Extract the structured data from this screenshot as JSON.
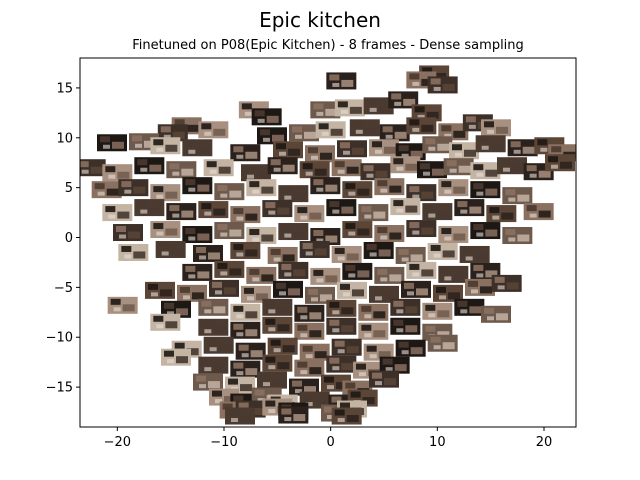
{
  "chart_data": {
    "type": "scatter",
    "title": "Epic kitchen",
    "subtitle": "Finetuned on P08(Epic Kitchen) - 8 frames - Dense sampling",
    "xlabel": "",
    "ylabel": "",
    "xlim": [
      -23.5,
      23
    ],
    "ylim": [
      -19,
      18
    ],
    "xticks": [
      -20,
      -10,
      0,
      10,
      20
    ],
    "yticks": [
      -15,
      -10,
      -5,
      0,
      5,
      10,
      15
    ],
    "xtick_labels": [
      "−20",
      "−10",
      "0",
      "10",
      "20"
    ],
    "ytick_labels": [
      "−15",
      "−10",
      "−5",
      "0",
      "5",
      "10",
      "15"
    ],
    "grid": false,
    "marker": "image-thumbnail",
    "points": [
      [
        1.0,
        15.7
      ],
      [
        9.7,
        16.4
      ],
      [
        8.5,
        15.8
      ],
      [
        10.5,
        15.3
      ],
      [
        -7.2,
        12.8
      ],
      [
        -6.0,
        12.1
      ],
      [
        -0.5,
        12.8
      ],
      [
        1.8,
        13.0
      ],
      [
        4.5,
        13.2
      ],
      [
        6.8,
        13.8
      ],
      [
        9.0,
        12.5
      ],
      [
        -13.5,
        11.2
      ],
      [
        -14.8,
        10.5
      ],
      [
        -11.0,
        10.8
      ],
      [
        -5.5,
        10.2
      ],
      [
        -2.5,
        10.5
      ],
      [
        0.0,
        10.8
      ],
      [
        3.2,
        11.0
      ],
      [
        6.0,
        10.5
      ],
      [
        8.5,
        11.2
      ],
      [
        11.5,
        10.6
      ],
      [
        13.8,
        11.5
      ],
      [
        15.5,
        11.0
      ],
      [
        -20.5,
        9.5
      ],
      [
        -17.5,
        9.6
      ],
      [
        -15.5,
        9.2
      ],
      [
        -12.5,
        9.0
      ],
      [
        -8.0,
        8.5
      ],
      [
        -4.0,
        8.8
      ],
      [
        -1.0,
        8.4
      ],
      [
        2.0,
        8.9
      ],
      [
        5.0,
        9.0
      ],
      [
        7.5,
        8.6
      ],
      [
        10.0,
        9.3
      ],
      [
        12.5,
        8.7
      ],
      [
        15.0,
        9.4
      ],
      [
        18.0,
        9.0
      ],
      [
        20.5,
        9.2
      ],
      [
        21.8,
        8.5
      ],
      [
        -22.5,
        7.0
      ],
      [
        -20.0,
        6.5
      ],
      [
        -17.0,
        7.2
      ],
      [
        -14.0,
        6.8
      ],
      [
        -10.5,
        7.0
      ],
      [
        -7.0,
        6.5
      ],
      [
        -4.5,
        7.2
      ],
      [
        -1.5,
        6.8
      ],
      [
        1.5,
        7.0
      ],
      [
        4.2,
        6.6
      ],
      [
        7.0,
        7.3
      ],
      [
        9.5,
        6.8
      ],
      [
        12.0,
        7.1
      ],
      [
        14.5,
        6.7
      ],
      [
        17.0,
        7.2
      ],
      [
        19.5,
        6.6
      ],
      [
        21.5,
        7.5
      ],
      [
        -21.0,
        4.8
      ],
      [
        -18.5,
        5.0
      ],
      [
        -15.5,
        4.5
      ],
      [
        -12.5,
        5.2
      ],
      [
        -9.5,
        4.6
      ],
      [
        -6.5,
        5.0
      ],
      [
        -3.5,
        4.4
      ],
      [
        -0.5,
        5.2
      ],
      [
        2.5,
        4.8
      ],
      [
        5.5,
        5.1
      ],
      [
        8.5,
        4.5
      ],
      [
        11.5,
        5.0
      ],
      [
        14.5,
        4.8
      ],
      [
        17.5,
        4.2
      ],
      [
        -20.0,
        2.5
      ],
      [
        -17.0,
        3.0
      ],
      [
        -14.0,
        2.6
      ],
      [
        -11.0,
        2.8
      ],
      [
        -8.0,
        2.3
      ],
      [
        -5.0,
        2.9
      ],
      [
        -2.0,
        2.4
      ],
      [
        1.0,
        3.0
      ],
      [
        4.0,
        2.5
      ],
      [
        7.0,
        3.1
      ],
      [
        10.0,
        2.6
      ],
      [
        13.0,
        3.0
      ],
      [
        16.0,
        2.4
      ],
      [
        19.5,
        2.6
      ],
      [
        -19.0,
        0.5
      ],
      [
        -15.5,
        0.8
      ],
      [
        -12.5,
        0.3
      ],
      [
        -9.5,
        0.7
      ],
      [
        -6.5,
        0.2
      ],
      [
        -3.5,
        0.6
      ],
      [
        -0.5,
        0.1
      ],
      [
        2.5,
        0.8
      ],
      [
        5.5,
        0.4
      ],
      [
        8.5,
        0.9
      ],
      [
        11.5,
        0.3
      ],
      [
        14.5,
        0.7
      ],
      [
        17.5,
        0.2
      ],
      [
        -18.5,
        -1.5
      ],
      [
        -15.0,
        -1.2
      ],
      [
        -11.5,
        -1.6
      ],
      [
        -8.0,
        -1.3
      ],
      [
        -4.5,
        -1.8
      ],
      [
        -1.5,
        -1.2
      ],
      [
        1.5,
        -1.7
      ],
      [
        4.5,
        -1.3
      ],
      [
        7.5,
        -1.8
      ],
      [
        10.5,
        -1.4
      ],
      [
        13.5,
        -1.7
      ],
      [
        -12.5,
        -3.5
      ],
      [
        -9.5,
        -3.2
      ],
      [
        -6.5,
        -3.8
      ],
      [
        -3.5,
        -3.3
      ],
      [
        -0.5,
        -3.9
      ],
      [
        2.5,
        -3.4
      ],
      [
        5.5,
        -3.8
      ],
      [
        8.5,
        -3.3
      ],
      [
        11.5,
        -3.7
      ],
      [
        14.5,
        -3.4
      ],
      [
        -16.0,
        -5.3
      ],
      [
        -13.0,
        -5.6
      ],
      [
        -10.0,
        -5.1
      ],
      [
        -7.0,
        -5.7
      ],
      [
        -4.0,
        -5.2
      ],
      [
        -1.0,
        -5.8
      ],
      [
        2.0,
        -5.3
      ],
      [
        5.0,
        -5.7
      ],
      [
        8.0,
        -5.2
      ],
      [
        11.0,
        -5.6
      ],
      [
        14.0,
        -5.0
      ],
      [
        16.5,
        -4.6
      ],
      [
        -19.5,
        -6.8
      ],
      [
        -14.5,
        -7.2
      ],
      [
        -11.0,
        -7.0
      ],
      [
        -8.0,
        -7.5
      ],
      [
        -5.0,
        -7.0
      ],
      [
        -2.0,
        -7.6
      ],
      [
        1.0,
        -7.1
      ],
      [
        4.0,
        -7.5
      ],
      [
        7.0,
        -7.0
      ],
      [
        10.0,
        -7.4
      ],
      [
        13.0,
        -7.0
      ],
      [
        15.5,
        -7.7
      ],
      [
        -15.5,
        -8.5
      ],
      [
        -11.0,
        -9.0
      ],
      [
        -8.0,
        -9.3
      ],
      [
        -5.0,
        -8.8
      ],
      [
        -2.0,
        -9.4
      ],
      [
        1.0,
        -8.9
      ],
      [
        4.0,
        -9.4
      ],
      [
        7.0,
        -8.9
      ],
      [
        10.0,
        -9.5
      ],
      [
        -13.5,
        -11.2
      ],
      [
        -10.5,
        -10.8
      ],
      [
        -7.5,
        -11.4
      ],
      [
        -4.5,
        -10.9
      ],
      [
        -1.5,
        -11.5
      ],
      [
        1.5,
        -11.0
      ],
      [
        4.5,
        -11.5
      ],
      [
        7.5,
        -11.1
      ],
      [
        10.5,
        -10.6
      ],
      [
        -14.5,
        -12.0
      ],
      [
        -11.0,
        -12.8
      ],
      [
        -8.0,
        -13.2
      ],
      [
        -5.0,
        -12.6
      ],
      [
        -2.0,
        -13.1
      ],
      [
        1.0,
        -12.7
      ],
      [
        3.5,
        -13.3
      ],
      [
        6.0,
        -12.8
      ],
      [
        -11.5,
        -14.5
      ],
      [
        -8.5,
        -14.8
      ],
      [
        -5.5,
        -14.3
      ],
      [
        -2.5,
        -15.0
      ],
      [
        0.5,
        -14.6
      ],
      [
        2.5,
        -15.2
      ],
      [
        5.0,
        -14.2
      ],
      [
        -10.0,
        -16.0
      ],
      [
        -8.0,
        -16.5
      ],
      [
        -6.0,
        -15.9
      ],
      [
        -4.5,
        -16.6
      ],
      [
        -1.5,
        -16.3
      ],
      [
        1.2,
        -16.6
      ],
      [
        3.0,
        -16.1
      ],
      [
        -9.0,
        -17.3
      ],
      [
        -7.5,
        -17.2
      ],
      [
        -5.0,
        -17.0
      ],
      [
        -3.5,
        -17.4
      ],
      [
        0.5,
        -17.6
      ],
      [
        2.0,
        -17.2
      ],
      [
        -8.5,
        -17.9
      ],
      [
        -3.5,
        -17.8
      ],
      [
        1.5,
        -17.9
      ]
    ]
  }
}
